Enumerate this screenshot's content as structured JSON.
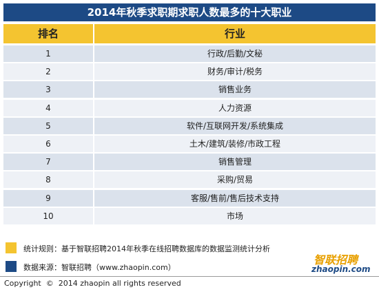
{
  "header": {
    "title": "2014年秋季求职期求职人数最多的十大职业"
  },
  "table": {
    "columns": [
      "排名",
      "行业"
    ],
    "rows": [
      [
        "1",
        "行政/后勤/文秘"
      ],
      [
        "2",
        "财务/审计/税务"
      ],
      [
        "3",
        "销售业务"
      ],
      [
        "4",
        "人力资源"
      ],
      [
        "5",
        "软件/互联网开发/系统集成"
      ],
      [
        "6",
        "土木/建筑/装修/市政工程"
      ],
      [
        "7",
        "销售管理"
      ],
      [
        "8",
        "采购/贸易"
      ],
      [
        "9",
        "客服/售前/售后技术支持"
      ],
      [
        "10",
        "市场"
      ]
    ]
  },
  "notes": [
    "统计规则：基于智联招聘2014年秋季在线招聘数据库的数据监测统计分析",
    "数据来源：智联招聘（www.zhaopin.com）"
  ],
  "logo": {
    "name": "智联招聘",
    "domain": "zhaopin.com"
  },
  "footer": {
    "copyright": "Copyright  ©  2014 zhaopin all rights reserved"
  }
}
